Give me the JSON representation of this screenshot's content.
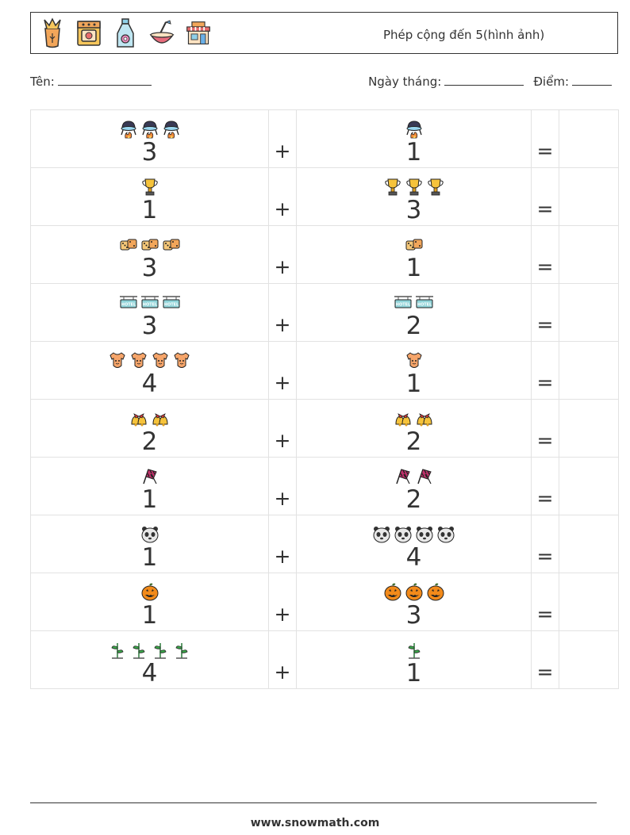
{
  "header": {
    "title": "Phép cộng đến 5(hình ảnh)",
    "icons": [
      "wheat-sack-icon",
      "oven-icon",
      "milk-bottle-icon",
      "mixing-bowl-icon",
      "shop-icon"
    ]
  },
  "info": {
    "name_label": "Tên:",
    "date_label": "Ngày tháng:",
    "score_label": "Điểm:"
  },
  "operators": {
    "plus": "+",
    "equals": "="
  },
  "problems": [
    {
      "a": {
        "count": 3,
        "label": "3",
        "icon": "cauldron-icon"
      },
      "b": {
        "count": 1,
        "label": "1",
        "icon": "cauldron-icon"
      }
    },
    {
      "a": {
        "count": 1,
        "label": "1",
        "icon": "trophy-icon"
      },
      "b": {
        "count": 3,
        "label": "3",
        "icon": "trophy-icon"
      }
    },
    {
      "a": {
        "count": 3,
        "label": "3",
        "icon": "dice-icon"
      },
      "b": {
        "count": 1,
        "label": "1",
        "icon": "dice-icon"
      }
    },
    {
      "a": {
        "count": 3,
        "label": "3",
        "icon": "hotel-sign-icon"
      },
      "b": {
        "count": 2,
        "label": "2",
        "icon": "hotel-sign-icon"
      }
    },
    {
      "a": {
        "count": 4,
        "label": "4",
        "icon": "baby-onesie-icon"
      },
      "b": {
        "count": 1,
        "label": "1",
        "icon": "baby-onesie-icon"
      }
    },
    {
      "a": {
        "count": 2,
        "label": "2",
        "icon": "bells-icon"
      },
      "b": {
        "count": 2,
        "label": "2",
        "icon": "bells-icon"
      }
    },
    {
      "a": {
        "count": 1,
        "label": "1",
        "icon": "checkered-flags-icon"
      },
      "b": {
        "count": 2,
        "label": "2",
        "icon": "checkered-flags-icon"
      }
    },
    {
      "a": {
        "count": 1,
        "label": "1",
        "icon": "panda-icon"
      },
      "b": {
        "count": 4,
        "label": "4",
        "icon": "panda-icon"
      }
    },
    {
      "a": {
        "count": 1,
        "label": "1",
        "icon": "pumpkin-icon"
      },
      "b": {
        "count": 3,
        "label": "3",
        "icon": "pumpkin-icon"
      }
    },
    {
      "a": {
        "count": 4,
        "label": "4",
        "icon": "sprout-icon"
      },
      "b": {
        "count": 1,
        "label": "1",
        "icon": "sprout-icon"
      }
    }
  ],
  "footer": {
    "url": "www.snowmath.com"
  }
}
